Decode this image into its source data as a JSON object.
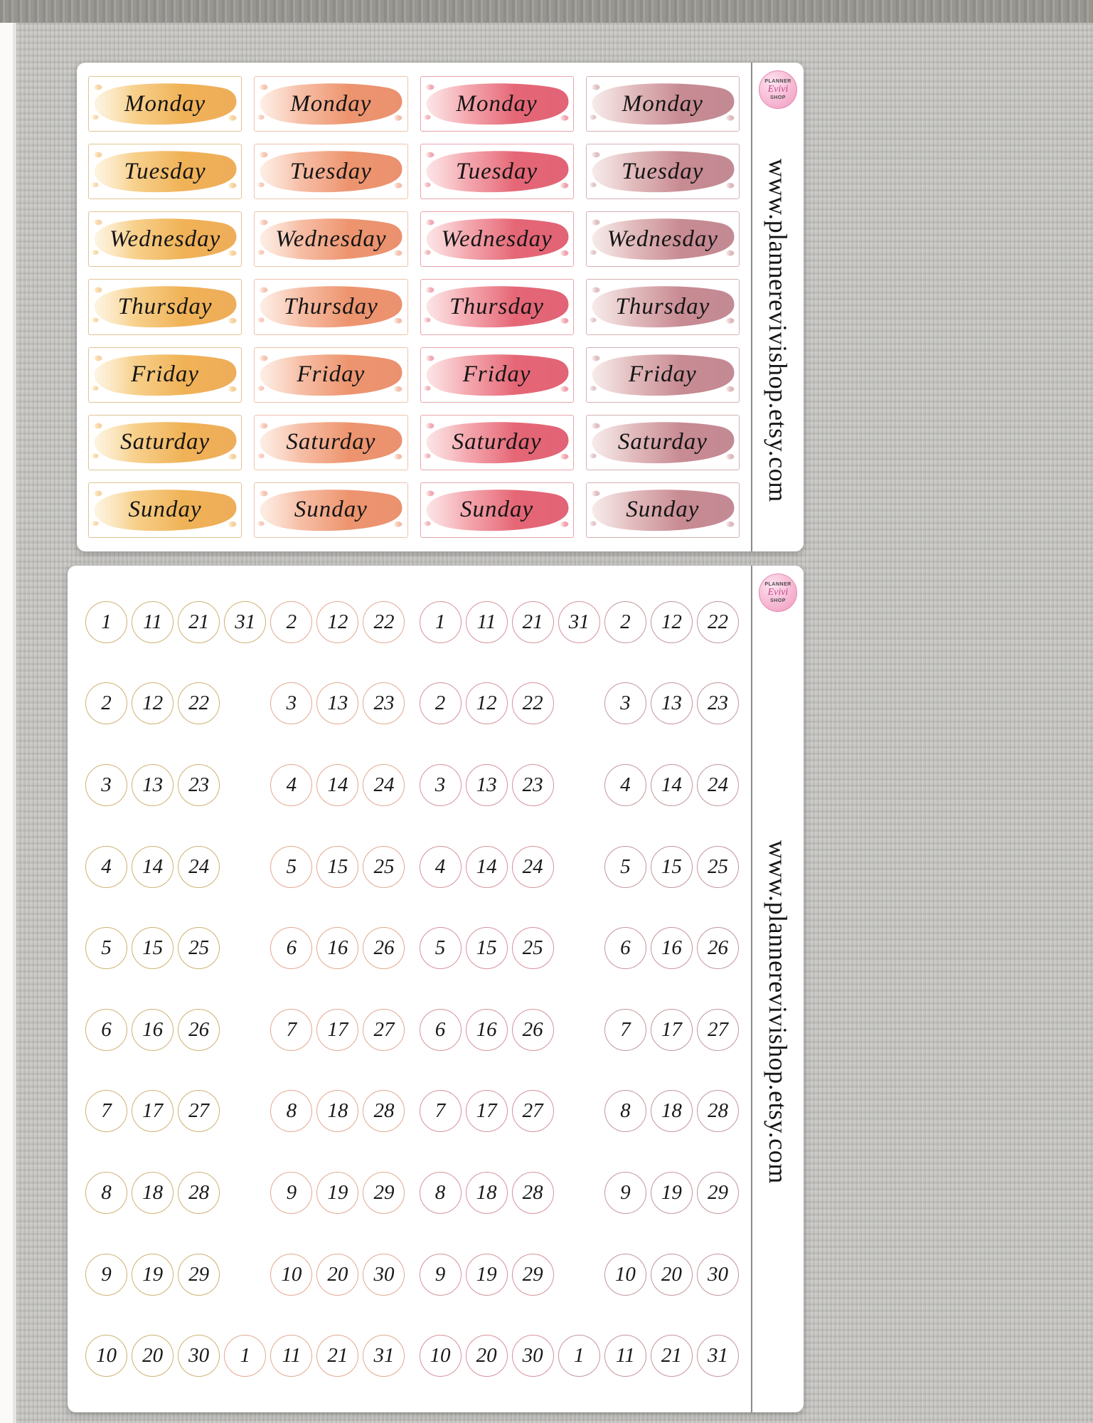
{
  "background": {
    "fabric": "#c6c5c2",
    "sheet": "#ffffff",
    "divider": "#8a8a8a",
    "logo_pink": "#f5aecd"
  },
  "branding": {
    "url": "www.plannerevivishop.etsy.com",
    "logo_top": "PLANNER",
    "logo_script": "Evivi",
    "logo_bottom": "SHOP"
  },
  "day_sheet": {
    "days": [
      "Monday",
      "Tuesday",
      "Wednesday",
      "Thursday",
      "Friday",
      "Saturday",
      "Sunday"
    ],
    "color_sets": [
      {
        "name": "gold",
        "sticker_border": "#dfc592",
        "circle_border": "#cdb273",
        "brush": [
          "#fbe7bd",
          "#f6c878",
          "#efae4e",
          "#eca243"
        ]
      },
      {
        "name": "coral",
        "sticker_border": "#eec3ac",
        "circle_border": "#e2a98f",
        "brush": [
          "#fbd8c4",
          "#f5b397",
          "#ec8f67",
          "#e8825c"
        ]
      },
      {
        "name": "watermelon",
        "sticker_border": "#e8a5ad",
        "circle_border": "#d6929b",
        "brush": [
          "#f8c3c6",
          "#f29aa2",
          "#e45f6f",
          "#dd4f64"
        ]
      },
      {
        "name": "rose",
        "sticker_border": "#d6b0b3",
        "circle_border": "#c4969c",
        "brush": [
          "#ecd0cf",
          "#ddb0b2",
          "#c5858d",
          "#bb7a85"
        ]
      }
    ]
  },
  "date_sheet": {
    "cell_format": "[columnIndex, dayNumber, colorSetIndex]",
    "rows": [
      [
        [
          0,
          1,
          0
        ],
        [
          1,
          11,
          0
        ],
        [
          2,
          21,
          0
        ],
        [
          3,
          31,
          0
        ],
        [
          4,
          2,
          1
        ],
        [
          5,
          12,
          1
        ],
        [
          6,
          22,
          1
        ],
        [
          7,
          1,
          2
        ],
        [
          8,
          11,
          2
        ],
        [
          9,
          21,
          2
        ],
        [
          10,
          31,
          2
        ],
        [
          11,
          2,
          3
        ],
        [
          12,
          12,
          3
        ],
        [
          13,
          22,
          3
        ]
      ],
      [
        [
          0,
          2,
          0
        ],
        [
          1,
          12,
          0
        ],
        [
          2,
          22,
          0
        ],
        [
          4,
          3,
          1
        ],
        [
          5,
          13,
          1
        ],
        [
          6,
          23,
          1
        ],
        [
          7,
          2,
          2
        ],
        [
          8,
          12,
          2
        ],
        [
          9,
          22,
          2
        ],
        [
          11,
          3,
          3
        ],
        [
          12,
          13,
          3
        ],
        [
          13,
          23,
          3
        ]
      ],
      [
        [
          0,
          3,
          0
        ],
        [
          1,
          13,
          0
        ],
        [
          2,
          23,
          0
        ],
        [
          4,
          4,
          1
        ],
        [
          5,
          14,
          1
        ],
        [
          6,
          24,
          1
        ],
        [
          7,
          3,
          2
        ],
        [
          8,
          13,
          2
        ],
        [
          9,
          23,
          2
        ],
        [
          11,
          4,
          3
        ],
        [
          12,
          14,
          3
        ],
        [
          13,
          24,
          3
        ]
      ],
      [
        [
          0,
          4,
          0
        ],
        [
          1,
          14,
          0
        ],
        [
          2,
          24,
          0
        ],
        [
          4,
          5,
          1
        ],
        [
          5,
          15,
          1
        ],
        [
          6,
          25,
          1
        ],
        [
          7,
          4,
          2
        ],
        [
          8,
          14,
          2
        ],
        [
          9,
          24,
          2
        ],
        [
          11,
          5,
          3
        ],
        [
          12,
          15,
          3
        ],
        [
          13,
          25,
          3
        ]
      ],
      [
        [
          0,
          5,
          0
        ],
        [
          1,
          15,
          0
        ],
        [
          2,
          25,
          0
        ],
        [
          4,
          6,
          1
        ],
        [
          5,
          16,
          1
        ],
        [
          6,
          26,
          1
        ],
        [
          7,
          5,
          2
        ],
        [
          8,
          15,
          2
        ],
        [
          9,
          25,
          2
        ],
        [
          11,
          6,
          3
        ],
        [
          12,
          16,
          3
        ],
        [
          13,
          26,
          3
        ]
      ],
      [
        [
          0,
          6,
          0
        ],
        [
          1,
          16,
          0
        ],
        [
          2,
          26,
          0
        ],
        [
          4,
          7,
          1
        ],
        [
          5,
          17,
          1
        ],
        [
          6,
          27,
          1
        ],
        [
          7,
          6,
          2
        ],
        [
          8,
          16,
          2
        ],
        [
          9,
          26,
          2
        ],
        [
          11,
          7,
          3
        ],
        [
          12,
          17,
          3
        ],
        [
          13,
          27,
          3
        ]
      ],
      [
        [
          0,
          7,
          0
        ],
        [
          1,
          17,
          0
        ],
        [
          2,
          27,
          0
        ],
        [
          4,
          8,
          1
        ],
        [
          5,
          18,
          1
        ],
        [
          6,
          28,
          1
        ],
        [
          7,
          7,
          2
        ],
        [
          8,
          17,
          2
        ],
        [
          9,
          27,
          2
        ],
        [
          11,
          8,
          3
        ],
        [
          12,
          18,
          3
        ],
        [
          13,
          28,
          3
        ]
      ],
      [
        [
          0,
          8,
          0
        ],
        [
          1,
          18,
          0
        ],
        [
          2,
          28,
          0
        ],
        [
          4,
          9,
          1
        ],
        [
          5,
          19,
          1
        ],
        [
          6,
          29,
          1
        ],
        [
          7,
          8,
          2
        ],
        [
          8,
          18,
          2
        ],
        [
          9,
          28,
          2
        ],
        [
          11,
          9,
          3
        ],
        [
          12,
          19,
          3
        ],
        [
          13,
          29,
          3
        ]
      ],
      [
        [
          0,
          9,
          0
        ],
        [
          1,
          19,
          0
        ],
        [
          2,
          29,
          0
        ],
        [
          4,
          10,
          1
        ],
        [
          5,
          20,
          1
        ],
        [
          6,
          30,
          1
        ],
        [
          7,
          9,
          2
        ],
        [
          8,
          19,
          2
        ],
        [
          9,
          29,
          2
        ],
        [
          11,
          10,
          3
        ],
        [
          12,
          20,
          3
        ],
        [
          13,
          30,
          3
        ]
      ],
      [
        [
          0,
          10,
          0
        ],
        [
          1,
          20,
          0
        ],
        [
          2,
          30,
          0
        ],
        [
          3,
          1,
          1
        ],
        [
          4,
          11,
          1
        ],
        [
          5,
          21,
          1
        ],
        [
          6,
          31,
          1
        ],
        [
          7,
          10,
          2
        ],
        [
          8,
          20,
          2
        ],
        [
          9,
          30,
          2
        ],
        [
          10,
          1,
          3
        ],
        [
          11,
          11,
          3
        ],
        [
          12,
          21,
          3
        ],
        [
          13,
          31,
          3
        ]
      ]
    ]
  }
}
